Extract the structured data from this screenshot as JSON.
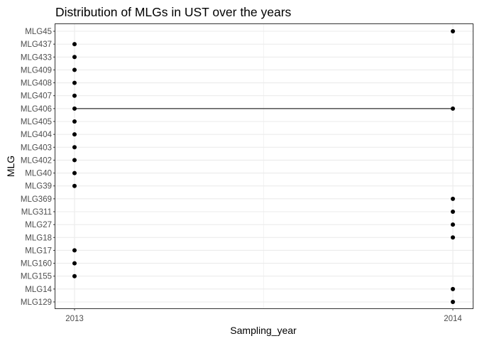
{
  "chart_data": {
    "type": "scatter",
    "title": "Distribution of MLGs in UST over the years",
    "xlabel": "Sampling_year",
    "ylabel": "MLG",
    "x_categories": [
      "2013",
      "2014"
    ],
    "y_categories": [
      "MLG129",
      "MLG14",
      "MLG155",
      "MLG160",
      "MLG17",
      "MLG18",
      "MLG27",
      "MLG311",
      "MLG369",
      "MLG39",
      "MLG40",
      "MLG402",
      "MLG403",
      "MLG404",
      "MLG405",
      "MLG406",
      "MLG407",
      "MLG408",
      "MLG409",
      "MLG433",
      "MLG437",
      "MLG45"
    ],
    "points": [
      {
        "x": "2014",
        "y": "MLG45"
      },
      {
        "x": "2013",
        "y": "MLG437"
      },
      {
        "x": "2013",
        "y": "MLG433"
      },
      {
        "x": "2013",
        "y": "MLG409"
      },
      {
        "x": "2013",
        "y": "MLG408"
      },
      {
        "x": "2013",
        "y": "MLG407"
      },
      {
        "x": "2013",
        "y": "MLG406"
      },
      {
        "x": "2014",
        "y": "MLG406"
      },
      {
        "x": "2013",
        "y": "MLG405"
      },
      {
        "x": "2013",
        "y": "MLG404"
      },
      {
        "x": "2013",
        "y": "MLG403"
      },
      {
        "x": "2013",
        "y": "MLG402"
      },
      {
        "x": "2013",
        "y": "MLG40"
      },
      {
        "x": "2013",
        "y": "MLG39"
      },
      {
        "x": "2014",
        "y": "MLG369"
      },
      {
        "x": "2014",
        "y": "MLG311"
      },
      {
        "x": "2014",
        "y": "MLG27"
      },
      {
        "x": "2014",
        "y": "MLG18"
      },
      {
        "x": "2013",
        "y": "MLG17"
      },
      {
        "x": "2013",
        "y": "MLG160"
      },
      {
        "x": "2013",
        "y": "MLG155"
      },
      {
        "x": "2014",
        "y": "MLG14"
      },
      {
        "x": "2014",
        "y": "MLG129"
      }
    ],
    "lines": [
      {
        "y": "MLG406",
        "from": "2013",
        "to": "2014"
      }
    ],
    "grid": true,
    "legend": "none",
    "colors": {
      "point": "#000000",
      "line": "#000000",
      "grid": "#ebebeb",
      "panel_border": "#333333",
      "tick_text": "#4d4d4d"
    }
  }
}
